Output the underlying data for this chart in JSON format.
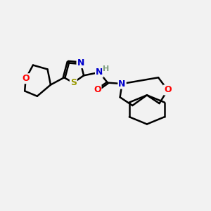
{
  "bg_color": "#f2f2f2",
  "atom_colors": {
    "C": "#000000",
    "N": "#0000cc",
    "O": "#ff0000",
    "S": "#999900",
    "H": "#7f9f7f"
  },
  "bond_color": "#000000",
  "bond_width": 1.8,
  "font_size": 9,
  "fig_width": 3.0,
  "fig_height": 3.0
}
